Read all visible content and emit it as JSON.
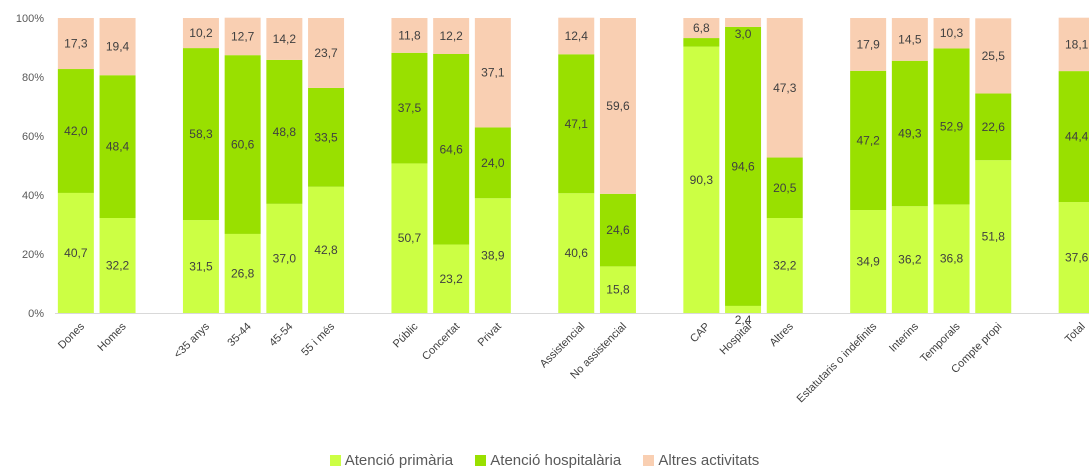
{
  "chart_data": {
    "type": "bar",
    "stacked": true,
    "normalized": true,
    "y_ticks": [
      "0%",
      "20%",
      "40%",
      "60%",
      "80%",
      "100%"
    ],
    "ylim": [
      0,
      100
    ],
    "grid": false,
    "legend_position": "bottom",
    "categories": [
      "Dones",
      "Homes",
      "<35 anys",
      "35-44",
      "45-54",
      "55 i més",
      "Públic",
      "Concertat",
      "Privat",
      "Assistencial",
      "No assistencial",
      "CAP",
      "Hospital",
      "Altres",
      "Estatutaris o indefinits",
      "Interins",
      "Temporals",
      "Compte propi",
      "Total"
    ],
    "groups": [
      2,
      4,
      3,
      2,
      3,
      4,
      1
    ],
    "series": [
      {
        "name": "Atenció primària",
        "color": "#ccff44",
        "values": [
          40.7,
          32.2,
          31.5,
          26.8,
          37.0,
          42.8,
          50.7,
          23.2,
          38.9,
          40.6,
          15.8,
          90.3,
          2.4,
          32.2,
          34.9,
          36.2,
          36.8,
          51.8,
          37.6
        ],
        "labels": [
          "40,7",
          "32,2",
          "31,5",
          "26,8",
          "37,0",
          "42,8",
          "50,7",
          "23,2",
          "38,9",
          "40,6",
          "15,8",
          "90,3",
          "2,4",
          "32,2",
          "34,9",
          "36,2",
          "36,8",
          "51,8",
          "37,6"
        ]
      },
      {
        "name": "Atenció hospitalària",
        "color": "#99e000",
        "values": [
          42.0,
          48.4,
          58.3,
          60.6,
          48.8,
          33.5,
          37.5,
          64.6,
          24.0,
          47.1,
          24.6,
          2.9,
          94.6,
          20.5,
          47.2,
          49.3,
          52.9,
          22.6,
          44.4
        ],
        "labels": [
          "42,0",
          "48,4",
          "58,3",
          "60,6",
          "48,8",
          "33,5",
          "37,5",
          "64,6",
          "24,0",
          "47,1",
          "24,6",
          "",
          "94,6",
          "20,5",
          "47,2",
          "49,3",
          "52,9",
          "22,6",
          "44,4"
        ]
      },
      {
        "name": "Altres activitats",
        "color": "#f9cfb2",
        "values": [
          17.3,
          19.4,
          10.2,
          12.7,
          14.2,
          23.7,
          11.8,
          12.2,
          37.1,
          12.4,
          59.6,
          6.8,
          3.0,
          47.3,
          17.9,
          14.5,
          10.3,
          25.5,
          18.1
        ],
        "labels": [
          "17,3",
          "19,4",
          "10,2",
          "12,7",
          "14,2",
          "23,7",
          "11,8",
          "12,2",
          "37,1",
          "12,4",
          "59,6",
          "6,8",
          "3,0",
          "47,3",
          "17,9",
          "14,5",
          "10,3",
          "25,5",
          "18,1"
        ]
      }
    ]
  }
}
